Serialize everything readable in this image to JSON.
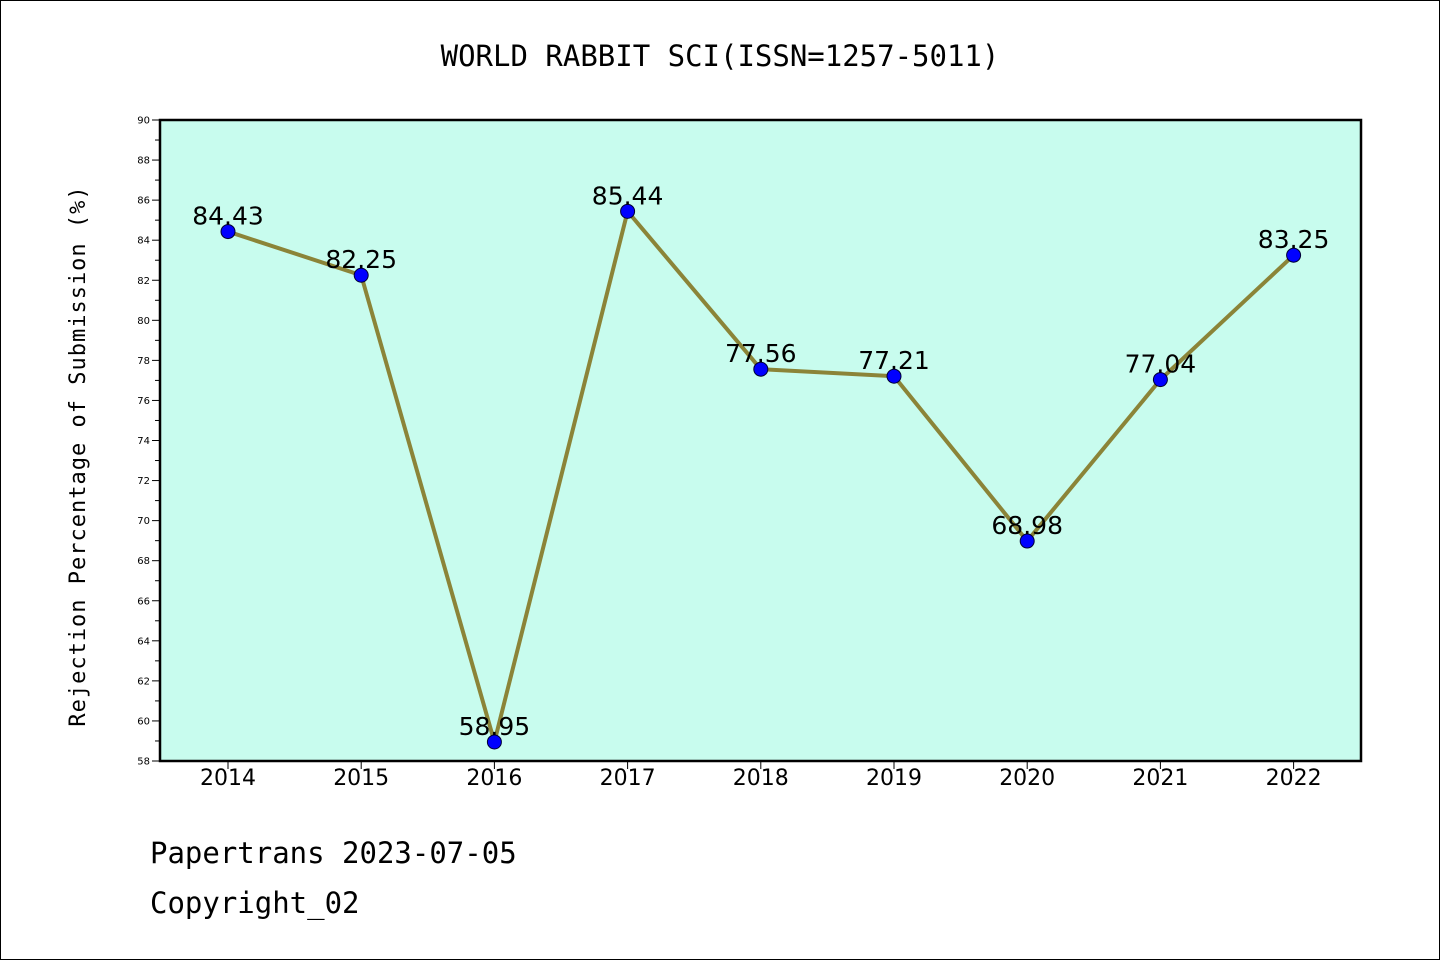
{
  "chart_data": {
    "type": "line",
    "title": "WORLD RABBIT SCI(ISSN=1257-5011)",
    "xlabel": "",
    "ylabel": "Rejection Percentage of Submission (%)",
    "categories": [
      "2014",
      "2015",
      "2016",
      "2017",
      "2018",
      "2019",
      "2020",
      "2021",
      "2022"
    ],
    "values": [
      84.43,
      82.25,
      58.95,
      85.44,
      77.56,
      77.21,
      68.98,
      77.04,
      83.25
    ],
    "data_labels": [
      "84.43",
      "82.25",
      "58.95",
      "85.44",
      "77.56",
      "77.21",
      "68.98",
      "77.04",
      "83.25"
    ],
    "ylim": [
      58,
      90
    ],
    "yticks": [
      58,
      60,
      62,
      64,
      66,
      68,
      70,
      72,
      74,
      76,
      78,
      80,
      82,
      84,
      86,
      88,
      90
    ],
    "grid": false,
    "legend": "none",
    "colors": {
      "plot_background": "#c8fcee",
      "line": "#8b8438",
      "marker": "#0000ff"
    }
  },
  "footer": {
    "line1": "Papertrans 2023-07-05",
    "line2": "Copyright_02"
  }
}
